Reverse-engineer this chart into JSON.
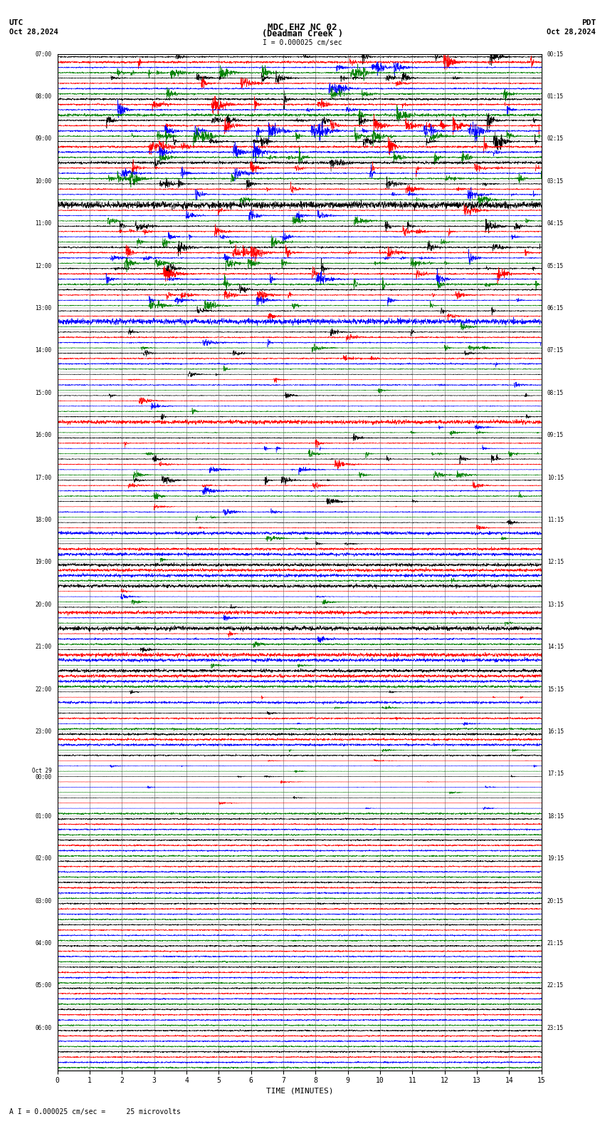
{
  "title_line1": "MDC EHZ NC 02",
  "title_line2": "(Deadman Creek )",
  "scale_text": "I = 0.000025 cm/sec",
  "utc_label": "UTC",
  "pdt_label": "PDT",
  "date_left": "Oct 28,2024",
  "date_right": "Oct 28,2024",
  "bottom_note": "A I = 0.000025 cm/sec =     25 microvolts",
  "xlabel": "TIME (MINUTES)",
  "bg_color": "#ffffff",
  "trace_colors": [
    "black",
    "red",
    "blue",
    "green"
  ],
  "num_rows": 48,
  "minutes_per_row": 15,
  "xlim": [
    0,
    15
  ],
  "xticks": [
    0,
    1,
    2,
    3,
    4,
    5,
    6,
    7,
    8,
    9,
    10,
    11,
    12,
    13,
    14,
    15
  ],
  "figure_width": 8.5,
  "figure_height": 15.84,
  "dpi": 100,
  "left_time_labels": [
    "07:00",
    "08:00",
    "09:00",
    "10:00",
    "11:00",
    "12:00",
    "13:00",
    "14:00",
    "15:00",
    "16:00",
    "17:00",
    "18:00",
    "19:00",
    "20:00",
    "21:00",
    "22:00",
    "23:00",
    "Oct 29\n00:00",
    "01:00",
    "02:00",
    "03:00",
    "04:00",
    "05:00",
    "06:00"
  ],
  "right_time_labels": [
    "00:15",
    "01:15",
    "02:15",
    "03:15",
    "04:15",
    "05:15",
    "06:15",
    "07:15",
    "08:15",
    "09:15",
    "10:15",
    "11:15",
    "12:15",
    "13:15",
    "14:15",
    "15:15",
    "16:15",
    "17:15",
    "18:15",
    "19:15",
    "20:15",
    "21:15",
    "22:15",
    "23:15"
  ],
  "amplitude_profile": [
    3.0,
    2.5,
    3.5,
    4.0,
    3.5,
    3.0,
    2.5,
    2.0,
    2.5,
    3.0,
    3.5,
    2.0,
    1.5,
    1.5,
    1.2,
    1.0,
    1.2,
    1.0,
    1.5,
    1.8,
    1.5,
    1.2,
    1.0,
    0.8,
    0.9,
    0.9,
    1.0,
    1.2,
    1.0,
    0.8,
    0.7,
    0.6,
    0.6,
    0.5,
    0.5,
    0.5,
    0.4,
    0.4,
    0.4,
    0.4,
    0.4,
    0.4,
    0.4,
    0.4,
    0.4,
    0.4,
    0.4,
    0.4
  ]
}
